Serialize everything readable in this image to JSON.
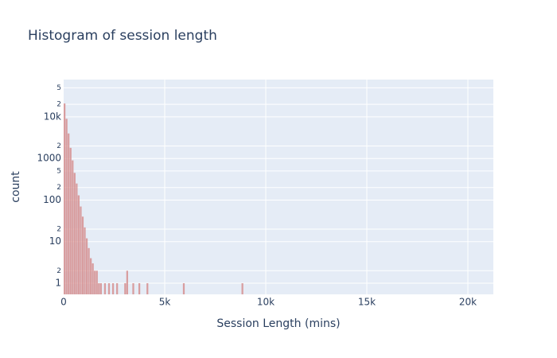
{
  "chart_data": {
    "type": "histogram",
    "title": "Histogram of session length",
    "x_label": "Session Length (mins)",
    "y_label": "count",
    "color": "#d68f8f",
    "log_y": true,
    "grid": true,
    "bins": [
      0,
      100,
      200,
      300,
      400,
      500,
      600,
      700,
      800,
      900,
      1000,
      1100,
      1200,
      1300,
      1400,
      1500,
      1600,
      1700,
      1800,
      1900,
      2000,
      2100,
      2200,
      2300,
      2400,
      2500,
      2600,
      2700,
      2800,
      2900,
      3000,
      3100,
      3200,
      3300,
      3400,
      3500,
      3600,
      3700,
      3800,
      3900,
      4000,
      4100,
      4200,
      4300,
      4400,
      4500,
      4600,
      4700,
      4800,
      4900,
      5000,
      5100,
      5200,
      5300,
      5400,
      5500,
      5600,
      5700,
      5800,
      5900,
      6000,
      6100,
      6200,
      6300,
      6400,
      6500,
      6600,
      6700,
      6800,
      6900,
      7000,
      7100,
      7200,
      7300,
      7400,
      7500,
      7600,
      7700,
      7800,
      7900,
      8000,
      8100,
      8200,
      8300,
      8400,
      8500,
      8600,
      8700,
      8800,
      8900,
      9000
    ],
    "values": [
      21000,
      9000,
      4000,
      1800,
      900,
      450,
      250,
      130,
      70,
      40,
      22,
      12,
      7,
      4,
      3,
      2,
      2,
      1,
      1,
      0,
      1,
      0,
      1,
      0,
      1,
      0,
      1,
      0,
      0,
      0,
      1,
      2,
      0,
      0,
      1,
      0,
      0,
      1,
      0,
      0,
      0,
      1,
      0,
      0,
      0,
      0,
      0,
      0,
      0,
      0,
      0,
      0,
      0,
      0,
      0,
      0,
      0,
      0,
      0,
      1,
      0,
      0,
      0,
      0,
      0,
      0,
      0,
      0,
      0,
      0,
      0,
      0,
      0,
      0,
      0,
      0,
      0,
      0,
      0,
      0,
      0,
      0,
      0,
      0,
      0,
      0,
      0,
      0,
      1,
      0
    ],
    "xlim": [
      0,
      21260
    ],
    "xticks": [
      0,
      {
        "value": 5000,
        "label": "5k"
      },
      {
        "value": 10000,
        "label": "10k"
      },
      {
        "value": 15000,
        "label": "15k"
      },
      {
        "value": 20000,
        "label": "20k"
      }
    ],
    "ylim": [
      0.54,
      79000
    ],
    "yticks": [
      1,
      {
        "value": 2,
        "label": "2"
      },
      10,
      {
        "value": 20,
        "label": "2"
      },
      100,
      {
        "value": 200,
        "label": "2"
      },
      {
        "value": 500,
        "label": "5"
      },
      1000,
      {
        "value": 2000,
        "label": "2"
      },
      {
        "value": 10000,
        "label": "10k"
      },
      {
        "value": 20000,
        "label": "2"
      },
      {
        "value": 50000,
        "label": "5"
      }
    ]
  }
}
